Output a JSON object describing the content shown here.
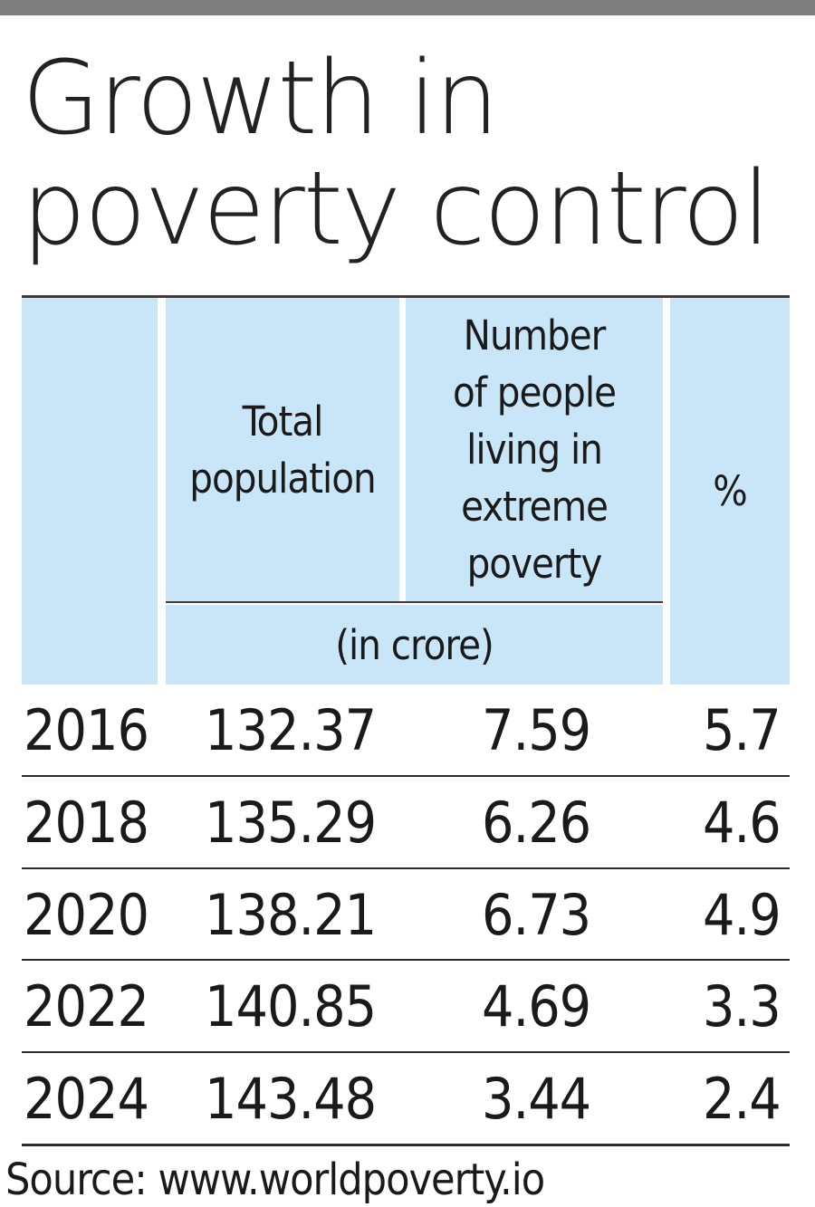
{
  "title_line1": "Growth in",
  "title_line2": "poverty control",
  "header": {
    "col_total": "Total population",
    "col_poverty": "Number of people living in extreme poverty",
    "col_pct": "%",
    "unit": "(in crore)"
  },
  "rows": [
    {
      "year": "2016",
      "total": "132.37",
      "poverty": "7.59",
      "pct": "5.7"
    },
    {
      "year": "2018",
      "total": "135.29",
      "poverty": "6.26",
      "pct": "4.6"
    },
    {
      "year": "2020",
      "total": "138.21",
      "poverty": "6.73",
      "pct": "4.9"
    },
    {
      "year": "2022",
      "total": "140.85",
      "poverty": "4.69",
      "pct": "3.3"
    },
    {
      "year": "2024",
      "total": "143.48",
      "poverty": "3.44",
      "pct": "2.4"
    }
  ],
  "source": "Source: www.worldpoverty.io",
  "colors": {
    "header_bg": "#c9e6f8",
    "top_bar": "#7f7f7f"
  },
  "chart_data": {
    "type": "table",
    "title": "Growth in poverty control",
    "columns": [
      "",
      "Total population",
      "Number of people living in extreme poverty",
      "%"
    ],
    "unit": "(in crore)",
    "categories": [
      "2016",
      "2018",
      "2020",
      "2022",
      "2024"
    ],
    "series": [
      {
        "name": "Total population",
        "values": [
          132.37,
          135.29,
          138.21,
          140.85,
          143.48
        ]
      },
      {
        "name": "Number of people living in extreme poverty",
        "values": [
          7.59,
          6.26,
          6.73,
          4.69,
          3.44
        ]
      },
      {
        "name": "%",
        "values": [
          5.7,
          4.6,
          4.9,
          3.3,
          2.4
        ]
      }
    ]
  }
}
